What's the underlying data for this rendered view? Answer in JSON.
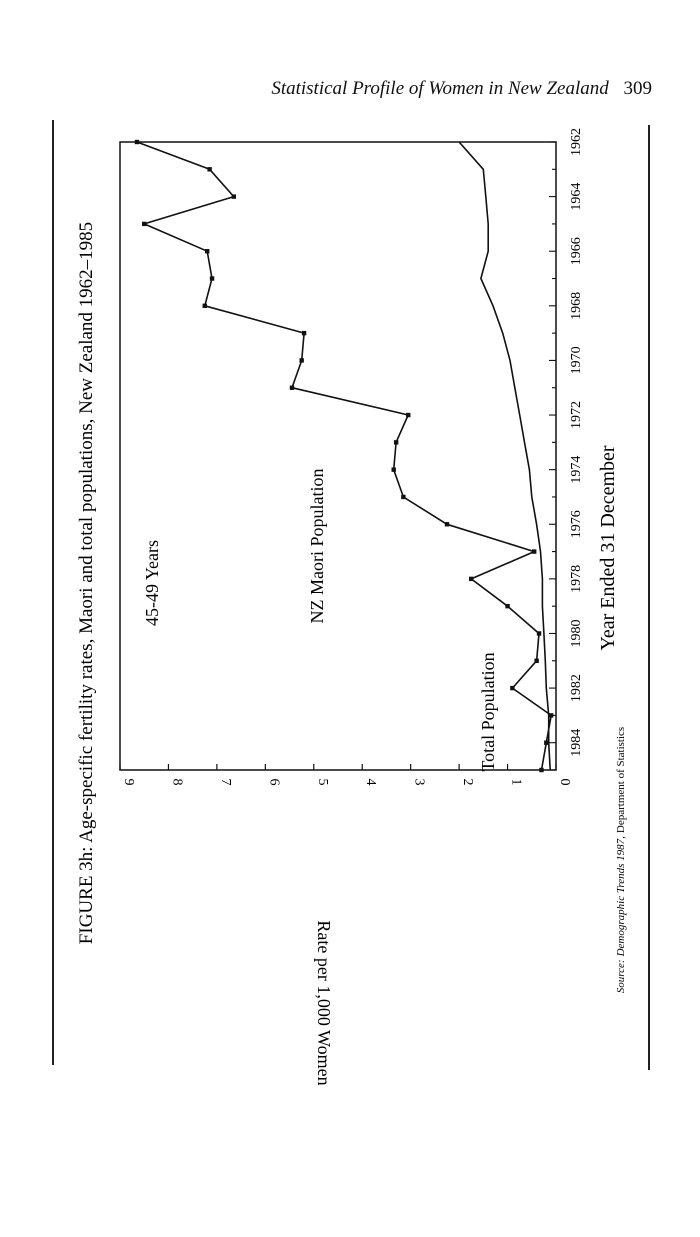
{
  "page": {
    "running_title": "Statistical Profile of Women in New Zealand",
    "page_number": "309"
  },
  "figure": {
    "caption": "FIGURE 3h: Age-specific fertility rates, Maori and total populations, New Zealand 1962–1985",
    "source_label": "Source:",
    "source_publication": "Demographic Trends 1987,",
    "source_agency": "Department of Statistics"
  },
  "chart_data": {
    "type": "line",
    "title": "45-49 Years",
    "xlabel": "Year Ended 31 December",
    "ylabel": "Rate per 1,000 Women",
    "xlim": [
      1962,
      1985
    ],
    "ylim": [
      0,
      9
    ],
    "x_ticks": [
      1962,
      1964,
      1966,
      1968,
      1970,
      1972,
      1974,
      1976,
      1978,
      1980,
      1982,
      1984
    ],
    "y_ticks": [
      0,
      1,
      2,
      3,
      4,
      5,
      6,
      7,
      8,
      9
    ],
    "x_minor_step": 1,
    "orientation": "rotated 90° counter-clockwise on page",
    "grid": false,
    "series": [
      {
        "name": "NZ Maori Population",
        "markers": true,
        "x": [
          1962,
          1963,
          1964,
          1965,
          1966,
          1967,
          1968,
          1969,
          1970,
          1971,
          1972,
          1973,
          1974,
          1975,
          1976,
          1977,
          1978,
          1979,
          1980,
          1981,
          1982,
          1983,
          1984,
          1985
        ],
        "y": [
          8.65,
          7.15,
          6.65,
          8.5,
          7.2,
          7.1,
          7.25,
          5.2,
          5.25,
          5.45,
          3.05,
          3.3,
          3.35,
          3.15,
          2.25,
          0.45,
          1.75,
          1.0,
          0.35,
          0.4,
          0.9,
          0.1,
          0.2,
          0.3
        ]
      },
      {
        "name": "Total Population",
        "markers": false,
        "x": [
          1962,
          1963,
          1964,
          1965,
          1966,
          1967,
          1968,
          1969,
          1970,
          1971,
          1972,
          1973,
          1974,
          1975,
          1976,
          1977,
          1978,
          1979,
          1980,
          1981,
          1982,
          1983,
          1984,
          1985
        ],
        "y": [
          2.0,
          1.5,
          1.45,
          1.4,
          1.4,
          1.55,
          1.3,
          1.1,
          0.95,
          0.85,
          0.75,
          0.65,
          0.55,
          0.5,
          0.4,
          0.32,
          0.28,
          0.28,
          0.25,
          0.22,
          0.2,
          0.15,
          0.15,
          0.12
        ]
      }
    ]
  }
}
